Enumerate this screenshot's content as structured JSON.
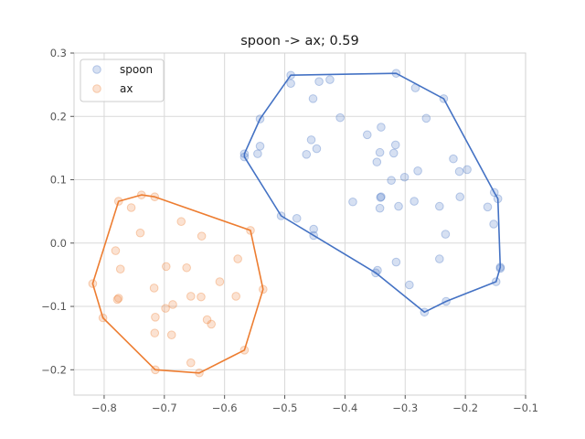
{
  "chart_data": {
    "type": "scatter",
    "title": "spoon -> ax; 0.59",
    "xlabel": "",
    "ylabel": "",
    "xlim": [
      -0.85,
      -0.1
    ],
    "ylim": [
      -0.24,
      0.3
    ],
    "x_ticks": [
      -0.8,
      -0.7,
      -0.6,
      -0.5,
      -0.4,
      -0.3,
      -0.2,
      -0.1
    ],
    "x_tick_labels": [
      "−0.8",
      "−0.7",
      "−0.6",
      "−0.5",
      "−0.4",
      "−0.3",
      "−0.2",
      "−0.1"
    ],
    "y_ticks": [
      -0.2,
      -0.1,
      0.0,
      0.1,
      0.2,
      0.3
    ],
    "y_tick_labels": [
      "−0.2",
      "−0.1",
      "0.0",
      "0.1",
      "0.2",
      "0.3"
    ],
    "grid": true,
    "legend_position": "top-left",
    "series": [
      {
        "name": "spoon",
        "color": "#4472c4",
        "points": [
          [
            -0.49,
            0.265
          ],
          [
            -0.49,
            0.252
          ],
          [
            -0.443,
            0.255
          ],
          [
            -0.425,
            0.258
          ],
          [
            -0.315,
            0.268
          ],
          [
            -0.283,
            0.245
          ],
          [
            -0.236,
            0.228
          ],
          [
            -0.265,
            0.197
          ],
          [
            -0.453,
            0.228
          ],
          [
            -0.408,
            0.198
          ],
          [
            -0.541,
            0.196
          ],
          [
            -0.34,
            0.183
          ],
          [
            -0.363,
            0.171
          ],
          [
            -0.456,
            0.163
          ],
          [
            -0.447,
            0.149
          ],
          [
            -0.316,
            0.155
          ],
          [
            -0.541,
            0.153
          ],
          [
            -0.567,
            0.141
          ],
          [
            -0.567,
            0.136
          ],
          [
            -0.545,
            0.141
          ],
          [
            -0.464,
            0.14
          ],
          [
            -0.342,
            0.143
          ],
          [
            -0.319,
            0.142
          ],
          [
            -0.347,
            0.128
          ],
          [
            -0.279,
            0.114
          ],
          [
            -0.22,
            0.133
          ],
          [
            -0.21,
            0.113
          ],
          [
            -0.197,
            0.116
          ],
          [
            -0.301,
            0.104
          ],
          [
            -0.323,
            0.099
          ],
          [
            -0.152,
            0.08
          ],
          [
            -0.146,
            0.07
          ],
          [
            -0.209,
            0.073
          ],
          [
            -0.34,
            0.073
          ],
          [
            -0.341,
            0.072
          ],
          [
            -0.387,
            0.065
          ],
          [
            -0.285,
            0.066
          ],
          [
            -0.311,
            0.058
          ],
          [
            -0.342,
            0.055
          ],
          [
            -0.243,
            0.058
          ],
          [
            -0.163,
            0.057
          ],
          [
            -0.506,
            0.043
          ],
          [
            -0.48,
            0.039
          ],
          [
            -0.153,
            0.03
          ],
          [
            -0.452,
            0.022
          ],
          [
            -0.452,
            0.012
          ],
          [
            -0.233,
            0.014
          ],
          [
            -0.243,
            -0.025
          ],
          [
            -0.315,
            -0.03
          ],
          [
            -0.346,
            -0.043
          ],
          [
            -0.349,
            -0.047
          ],
          [
            -0.142,
            -0.038
          ],
          [
            -0.142,
            -0.04
          ],
          [
            -0.149,
            -0.061
          ],
          [
            -0.293,
            -0.066
          ],
          [
            -0.232,
            -0.092
          ],
          [
            -0.268,
            -0.109
          ]
        ],
        "hull": [
          [
            -0.567,
            0.141
          ],
          [
            -0.541,
            0.196
          ],
          [
            -0.49,
            0.265
          ],
          [
            -0.315,
            0.268
          ],
          [
            -0.236,
            0.228
          ],
          [
            -0.152,
            0.08
          ],
          [
            -0.146,
            0.07
          ],
          [
            -0.142,
            -0.038
          ],
          [
            -0.149,
            -0.061
          ],
          [
            -0.232,
            -0.092
          ],
          [
            -0.268,
            -0.109
          ],
          [
            -0.349,
            -0.047
          ],
          [
            -0.506,
            0.043
          ],
          [
            -0.567,
            0.136
          ]
        ]
      },
      {
        "name": "ax",
        "color": "#ed7d31",
        "points": [
          [
            -0.738,
            0.076
          ],
          [
            -0.716,
            0.073
          ],
          [
            -0.776,
            0.066
          ],
          [
            -0.755,
            0.056
          ],
          [
            -0.672,
            0.034
          ],
          [
            -0.557,
            0.02
          ],
          [
            -0.74,
            0.016
          ],
          [
            -0.638,
            0.011
          ],
          [
            -0.781,
            -0.012
          ],
          [
            -0.578,
            -0.025
          ],
          [
            -0.773,
            -0.041
          ],
          [
            -0.697,
            -0.037
          ],
          [
            -0.663,
            -0.039
          ],
          [
            -0.608,
            -0.061
          ],
          [
            -0.819,
            -0.064
          ],
          [
            -0.717,
            -0.071
          ],
          [
            -0.536,
            -0.073
          ],
          [
            -0.656,
            -0.084
          ],
          [
            -0.639,
            -0.085
          ],
          [
            -0.581,
            -0.084
          ],
          [
            -0.776,
            -0.087
          ],
          [
            -0.778,
            -0.089
          ],
          [
            -0.686,
            -0.097
          ],
          [
            -0.698,
            -0.103
          ],
          [
            -0.715,
            -0.117
          ],
          [
            -0.629,
            -0.121
          ],
          [
            -0.622,
            -0.128
          ],
          [
            -0.716,
            -0.142
          ],
          [
            -0.688,
            -0.145
          ],
          [
            -0.802,
            -0.118
          ],
          [
            -0.567,
            -0.169
          ],
          [
            -0.656,
            -0.189
          ],
          [
            -0.715,
            -0.2
          ],
          [
            -0.642,
            -0.205
          ]
        ],
        "hull": [
          [
            -0.738,
            0.076
          ],
          [
            -0.716,
            0.073
          ],
          [
            -0.557,
            0.02
          ],
          [
            -0.536,
            -0.073
          ],
          [
            -0.567,
            -0.169
          ],
          [
            -0.642,
            -0.205
          ],
          [
            -0.715,
            -0.2
          ],
          [
            -0.802,
            -0.118
          ],
          [
            -0.819,
            -0.064
          ],
          [
            -0.776,
            0.066
          ]
        ]
      }
    ]
  }
}
